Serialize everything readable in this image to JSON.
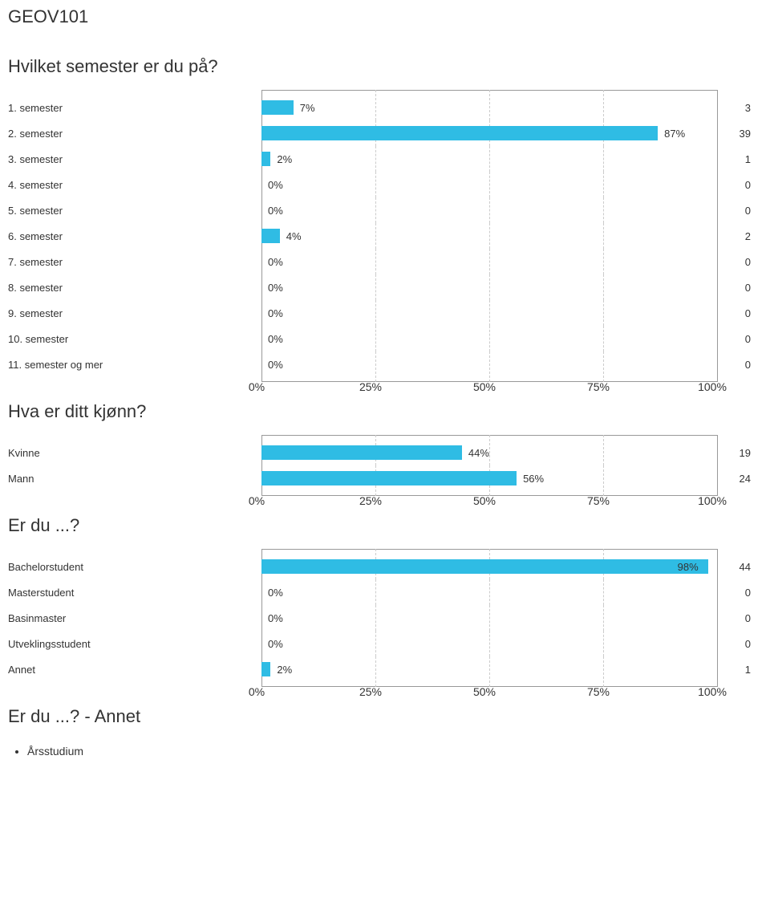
{
  "page_title": "GEOV101",
  "charts": [
    {
      "question": "Hvilket semester er du på?",
      "type": "bar-horizontal",
      "bar_color": "#2fbce4",
      "grid_color": "#cccccc",
      "background_color": "#ffffff",
      "xlim": [
        0,
        100
      ],
      "xtick_step": 25,
      "xtick_labels": [
        "0%",
        "25%",
        "50%",
        "75%",
        "100%"
      ],
      "label_fontsize": 13,
      "rows": [
        {
          "label": "1. semester",
          "pct": 7,
          "count": 3
        },
        {
          "label": "2. semester",
          "pct": 87,
          "count": 39
        },
        {
          "label": "3. semester",
          "pct": 2,
          "count": 1
        },
        {
          "label": "4. semester",
          "pct": 0,
          "count": 0
        },
        {
          "label": "5. semester",
          "pct": 0,
          "count": 0
        },
        {
          "label": "6. semester",
          "pct": 4,
          "count": 2
        },
        {
          "label": "7. semester",
          "pct": 0,
          "count": 0
        },
        {
          "label": "8. semester",
          "pct": 0,
          "count": 0
        },
        {
          "label": "9. semester",
          "pct": 0,
          "count": 0
        },
        {
          "label": "10. semester",
          "pct": 0,
          "count": 0
        },
        {
          "label": "11. semester og mer",
          "pct": 0,
          "count": 0
        }
      ]
    },
    {
      "question": "Hva er ditt kjønn?",
      "type": "bar-horizontal",
      "bar_color": "#2fbce4",
      "grid_color": "#cccccc",
      "background_color": "#ffffff",
      "xlim": [
        0,
        100
      ],
      "xtick_step": 25,
      "xtick_labels": [
        "0%",
        "25%",
        "50%",
        "75%",
        "100%"
      ],
      "label_fontsize": 13,
      "rows": [
        {
          "label": "Kvinne",
          "pct": 44,
          "count": 19
        },
        {
          "label": "Mann",
          "pct": 56,
          "count": 24
        }
      ]
    },
    {
      "question": "Er du ...?",
      "type": "bar-horizontal",
      "bar_color": "#2fbce4",
      "grid_color": "#cccccc",
      "background_color": "#ffffff",
      "xlim": [
        0,
        100
      ],
      "xtick_step": 25,
      "xtick_labels": [
        "0%",
        "25%",
        "50%",
        "75%",
        "100%"
      ],
      "label_fontsize": 13,
      "rows": [
        {
          "label": "Bachelorstudent",
          "pct": 98,
          "count": 44
        },
        {
          "label": "Masterstudent",
          "pct": 0,
          "count": 0
        },
        {
          "label": "Basinmaster",
          "pct": 0,
          "count": 0
        },
        {
          "label": "Utveklingsstudent",
          "pct": 0,
          "count": 0
        },
        {
          "label": "Annet",
          "pct": 2,
          "count": 1
        }
      ]
    }
  ],
  "open_answer": {
    "title": "Er du ...? - Annet",
    "items": [
      "Årsstudium"
    ]
  }
}
